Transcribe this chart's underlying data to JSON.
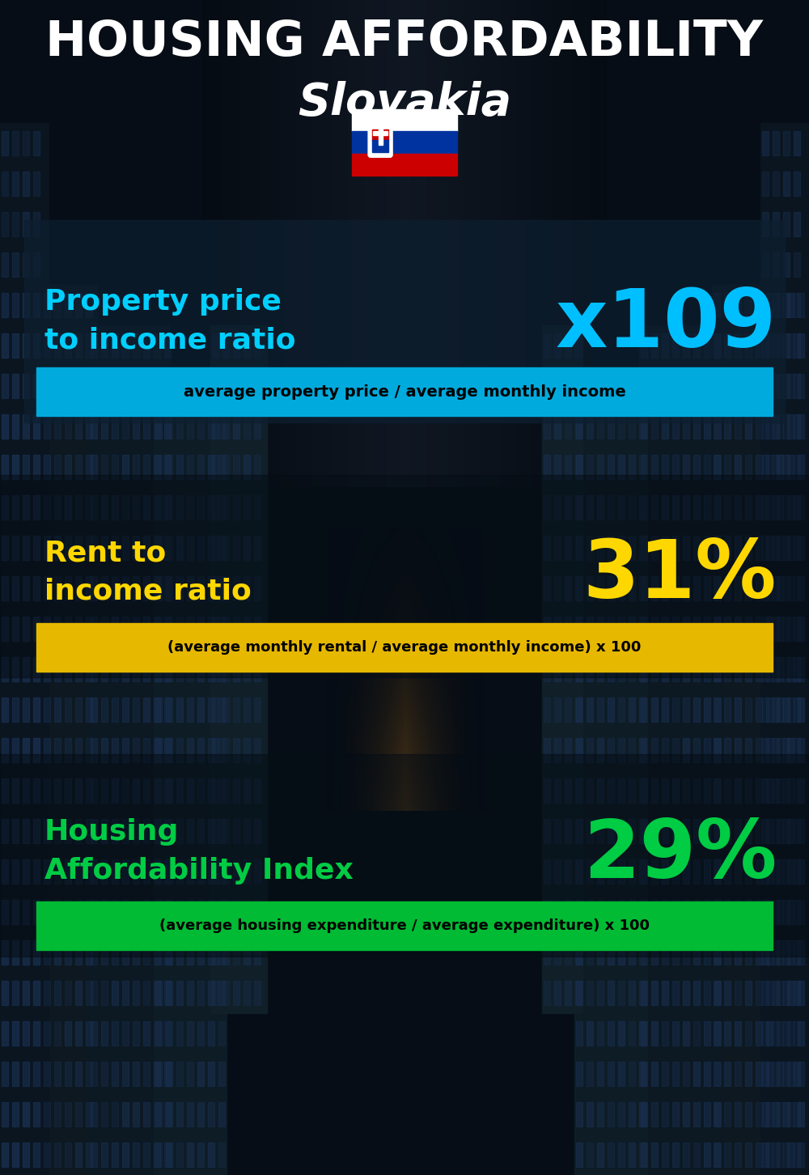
{
  "title_line1": "HOUSING AFFORDABILITY",
  "title_line2": "Slovakia",
  "section1_label": "Property price\nto income ratio",
  "section1_value": "x109",
  "section1_label_color": "#00cfff",
  "section1_value_color": "#00bfff",
  "section1_formula": "average property price / average monthly income",
  "section1_formula_bg": "#00aadd",
  "section2_label": "Rent to\nincome ratio",
  "section2_value": "31%",
  "section2_label_color": "#ffd700",
  "section2_value_color": "#ffd700",
  "section2_formula": "(average monthly rental / average monthly income) x 100",
  "section2_formula_bg": "#e6b800",
  "section3_label": "Housing\nAffordability Index",
  "section3_value": "29%",
  "section3_label_color": "#00cc44",
  "section3_value_color": "#00cc44",
  "section3_formula": "(average housing expenditure / average expenditure) x 100",
  "section3_formula_bg": "#00bb33",
  "bg_color": "#060d16",
  "title_color": "#ffffff"
}
